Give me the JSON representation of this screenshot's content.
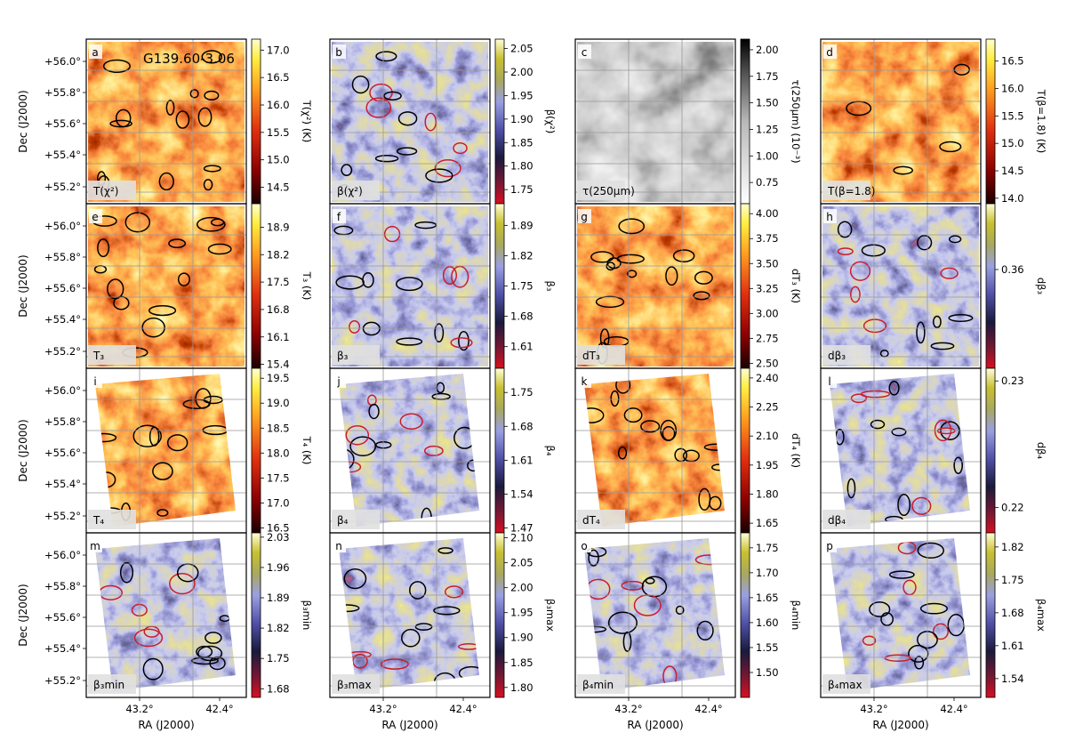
{
  "region_label": "G139.60-3.06",
  "axes": {
    "dec_label": "Dec (J2000)",
    "ra_label": "RA (J2000)",
    "dec_ticks": [
      "+56.0°",
      "+55.8°",
      "+55.6°",
      "+55.4°",
      "+55.2°"
    ],
    "ra_ticks": [
      "43.2°",
      "42.4°"
    ]
  },
  "colors": {
    "bg": "#ffffff",
    "frame": "#000000",
    "contour_black": "#000000",
    "contour_red": "#c81e2a",
    "grid": "#999999",
    "label_box": "#e0e0e0"
  },
  "chart_data": [
    {
      "letter": "a",
      "type": "heatmap",
      "map": "T(χ²)",
      "colorbar_label": "T(χ²) (K)",
      "cmap": "hot",
      "ticks": [
        "17.0",
        "16.5",
        "16.0",
        "15.5",
        "15.0",
        "14.5"
      ],
      "range": [
        14.2,
        17.2
      ]
    },
    {
      "letter": "b",
      "type": "heatmap",
      "map": "β(χ²)",
      "colorbar_label": "β(χ²)",
      "cmap": "div",
      "ticks": [
        "2.05",
        "2.00",
        "1.95",
        "1.90",
        "1.85",
        "1.80",
        "1.75"
      ],
      "range": [
        1.72,
        2.07
      ]
    },
    {
      "letter": "c",
      "type": "heatmap",
      "map": "τ(250μm)",
      "colorbar_label": "τ(250μm) (10⁻³)",
      "cmap": "gray",
      "ticks": [
        "2.00",
        "1.75",
        "1.50",
        "1.25",
        "1.00",
        "0.75"
      ],
      "range": [
        0.55,
        2.1
      ]
    },
    {
      "letter": "d",
      "type": "heatmap",
      "map": "T(β=1.8)",
      "colorbar_label": "T(β=1.8) (K)",
      "cmap": "hot",
      "ticks": [
        "16.5",
        "16.0",
        "15.5",
        "15.0",
        "14.5",
        "14.0"
      ],
      "range": [
        13.9,
        16.9
      ]
    },
    {
      "letter": "e",
      "type": "heatmap",
      "map": "T₃",
      "colorbar_label": "T₃ (K)",
      "cmap": "hot",
      "ticks": [
        "18.9",
        "18.2",
        "17.5",
        "16.8",
        "16.1",
        "15.4"
      ],
      "range": [
        15.3,
        19.5
      ]
    },
    {
      "letter": "f",
      "type": "heatmap",
      "map": "β₃",
      "colorbar_label": "β₃",
      "cmap": "div",
      "ticks": [
        "1.89",
        "1.82",
        "1.75",
        "1.68",
        "1.61"
      ],
      "range": [
        1.56,
        1.94
      ]
    },
    {
      "letter": "g",
      "type": "heatmap",
      "map": "dT₃",
      "colorbar_label": "dT₃ (K)",
      "cmap": "hot",
      "ticks": [
        "4.00",
        "3.75",
        "3.50",
        "3.25",
        "3.00",
        "2.75",
        "2.50"
      ],
      "range": [
        2.45,
        4.1
      ]
    },
    {
      "letter": "h",
      "type": "heatmap",
      "map": "dβ₃",
      "colorbar_label": "dβ₃",
      "cmap": "div",
      "ticks": [
        "0.36"
      ],
      "range": [
        0.3,
        0.4
      ]
    },
    {
      "letter": "i",
      "type": "heatmap",
      "map": "T₄",
      "colorbar_label": "T₄ (K)",
      "cmap": "hot",
      "ticks": [
        "19.5",
        "19.0",
        "18.5",
        "18.0",
        "17.5",
        "17.0",
        "16.5"
      ],
      "range": [
        16.4,
        19.7
      ]
    },
    {
      "letter": "j",
      "type": "heatmap",
      "map": "β₄",
      "colorbar_label": "β₄",
      "cmap": "div",
      "ticks": [
        "1.75",
        "1.68",
        "1.61",
        "1.54",
        "1.47"
      ],
      "range": [
        1.46,
        1.8
      ]
    },
    {
      "letter": "k",
      "type": "heatmap",
      "map": "dT₄",
      "colorbar_label": "dT₄ (K)",
      "cmap": "hot",
      "ticks": [
        "2.40",
        "2.25",
        "2.10",
        "1.95",
        "1.80",
        "1.65"
      ],
      "range": [
        1.6,
        2.45
      ]
    },
    {
      "letter": "l",
      "type": "heatmap",
      "map": "dβ₄",
      "colorbar_label": "dβ₄",
      "cmap": "div",
      "ticks": [
        "0.23",
        "0.22"
      ],
      "range": [
        0.218,
        0.231
      ]
    },
    {
      "letter": "m",
      "type": "heatmap",
      "map": "β₃min",
      "colorbar_label": "β₃min",
      "cmap": "div",
      "ticks": [
        "2.03",
        "1.96",
        "1.89",
        "1.82",
        "1.75",
        "1.68"
      ],
      "range": [
        1.66,
        2.04
      ]
    },
    {
      "letter": "n",
      "type": "heatmap",
      "map": "β₃max",
      "colorbar_label": "β₃max",
      "cmap": "div",
      "ticks": [
        "2.10",
        "2.05",
        "2.00",
        "1.95",
        "1.90",
        "1.85",
        "1.80"
      ],
      "range": [
        1.78,
        2.11
      ]
    },
    {
      "letter": "o",
      "type": "heatmap",
      "map": "β₄min",
      "colorbar_label": "β₄min",
      "cmap": "div",
      "ticks": [
        "1.75",
        "1.70",
        "1.65",
        "1.60",
        "1.55",
        "1.50"
      ],
      "range": [
        1.45,
        1.78
      ]
    },
    {
      "letter": "p",
      "type": "heatmap",
      "map": "β₄max",
      "colorbar_label": "β₄max",
      "cmap": "div",
      "ticks": [
        "1.82",
        "1.75",
        "1.68",
        "1.61",
        "1.54"
      ],
      "range": [
        1.5,
        1.85
      ]
    }
  ]
}
